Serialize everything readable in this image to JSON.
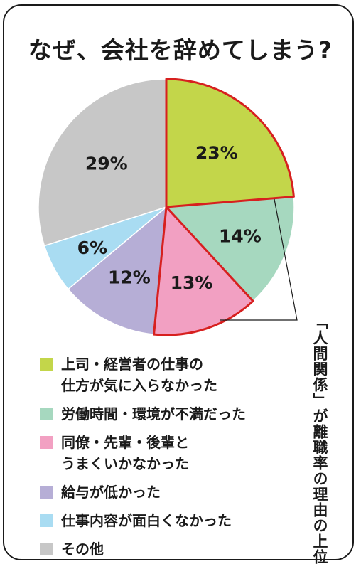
{
  "chart_data": {
    "type": "pie",
    "title": "なぜ、会社を辞めてしまう?",
    "annotation": "「人間関係」が離職率の理由の上位",
    "slices": [
      {
        "label": "上司・経営者の仕事の仕方が気に入らなかった",
        "label_lines": [
          "上司・経営者の仕事の",
          "仕方が気に入らなかった"
        ],
        "value": 23,
        "display": "23%",
        "color": "#c3d64a",
        "highlight": true
      },
      {
        "label": "労働時間・環境が不満だった",
        "label_lines": [
          "労働時間・環境が不満だった"
        ],
        "value": 14,
        "display": "14%",
        "color": "#a6d8bf",
        "highlight": false
      },
      {
        "label": "同僚・先輩・後輩とうまくいかなかった",
        "label_lines": [
          "同僚・先輩・後輩と",
          "うまくいかなかった"
        ],
        "value": 13,
        "display": "13%",
        "color": "#f2a0c2",
        "highlight": true
      },
      {
        "label": "給与が低かった",
        "label_lines": [
          "給与が低かった"
        ],
        "value": 12,
        "display": "12%",
        "color": "#b6aed6",
        "highlight": false
      },
      {
        "label": "仕事内容が面白くなかった",
        "label_lines": [
          "仕事内容が面白くなかった"
        ],
        "value": 6,
        "display": "6%",
        "color": "#a9dcf2",
        "highlight": false
      },
      {
        "label": "その他",
        "label_lines": [
          "その他"
        ],
        "value": 29,
        "display": "29%",
        "color": "#c7c7c7",
        "highlight": false
      }
    ],
    "highlight_color": "#d7201f"
  }
}
